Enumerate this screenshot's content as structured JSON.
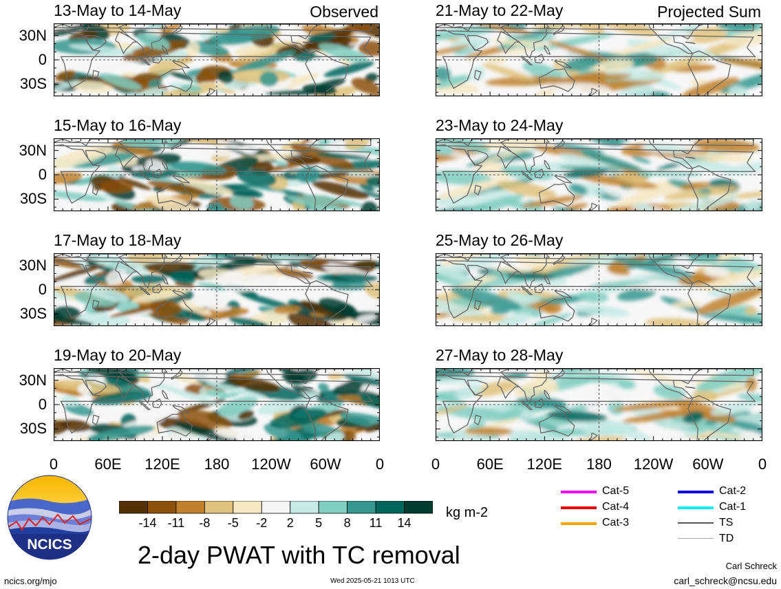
{
  "panels": [
    {
      "title": "13-May to 14-May",
      "tag": "Observed",
      "seed": 11
    },
    {
      "title": "21-May to 22-May",
      "tag": "Projected Sum",
      "seed": 21
    },
    {
      "title": "15-May to 16-May",
      "tag": "",
      "seed": 12
    },
    {
      "title": "23-May to 24-May",
      "tag": "",
      "seed": 22
    },
    {
      "title": "17-May to 18-May",
      "tag": "",
      "seed": 13
    },
    {
      "title": "25-May to 26-May",
      "tag": "",
      "seed": 23
    },
    {
      "title": "19-May to 20-May",
      "tag": "",
      "seed": 14
    },
    {
      "title": "27-May to 28-May",
      "tag": "",
      "seed": 24
    }
  ],
  "lat_labels": [
    "30N",
    "0",
    "30S"
  ],
  "lon_labels": [
    "0",
    "60E",
    "120E",
    "180",
    "120W",
    "60W",
    "0"
  ],
  "colorbar": {
    "colors": [
      "#543005",
      "#8c510a",
      "#bf812d",
      "#dfc27d",
      "#f6e8c3",
      "#f5f5f5",
      "#c7eae5",
      "#80cdc1",
      "#35978f",
      "#01665e",
      "#003c30"
    ],
    "tick_labels": [
      "-14",
      "-11",
      "-8",
      "-5",
      "-2",
      "2",
      "5",
      "8",
      "11",
      "14"
    ],
    "units": "kg m-2"
  },
  "tc_legend": [
    {
      "label": "Cat-5",
      "color": "#ff00ff"
    },
    {
      "label": "Cat-2",
      "color": "#0000ee"
    },
    {
      "label": "Cat-4",
      "color": "#ee0000"
    },
    {
      "label": "Cat-1",
      "color": "#00eeee"
    },
    {
      "label": "Cat-3",
      "color": "#ffa500"
    },
    {
      "label": "TS",
      "color": "#555555"
    },
    {
      "label": "",
      "color": ""
    },
    {
      "label": "TD",
      "color": "#aaaaaa"
    }
  ],
  "logo": {
    "text": "NCICS"
  },
  "main_title": "2-day PWAT with TC removal",
  "footer": {
    "url": "ncics.org/mjo",
    "timestamp": "Wed 2025-05-21 1013 UTC",
    "author": "Carl Schreck",
    "email": "carl_schreck@ncsu.edu"
  }
}
